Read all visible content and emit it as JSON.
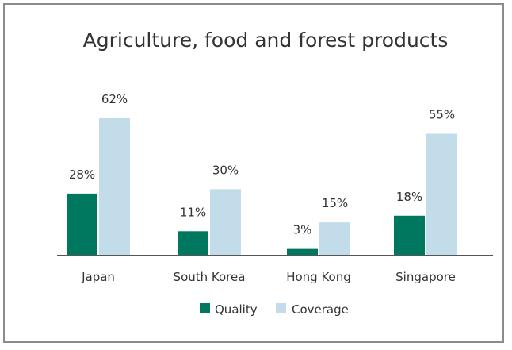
{
  "chart_data": {
    "type": "bar",
    "title": "Agriculture, food and forest products",
    "categories": [
      "Japan",
      "South Korea",
      "Hong Kong",
      "Singapore"
    ],
    "series": [
      {
        "name": "Quality",
        "values": [
          28,
          11,
          3,
          18
        ],
        "labels": [
          "28%",
          "11%",
          "3%",
          "18%"
        ],
        "color": "#00775f"
      },
      {
        "name": "Coverage",
        "values": [
          62,
          30,
          15,
          55
        ],
        "labels": [
          "62%",
          "30%",
          "15%",
          "55%"
        ],
        "color": "#c2dcea"
      }
    ],
    "xlabel": "",
    "ylabel": "",
    "ylim": [
      0,
      62
    ],
    "grid": false,
    "legend_position": "bottom-center",
    "axis_color": "#555555"
  }
}
